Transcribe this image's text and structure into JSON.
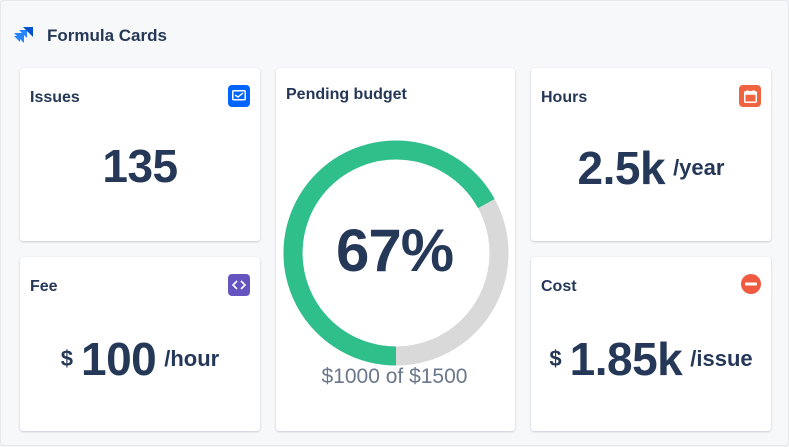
{
  "header": {
    "title": "Formula Cards"
  },
  "cards": {
    "issues": {
      "label": "Issues",
      "value": "135",
      "icon": "monitor-icon",
      "icon_color": "#0065ff"
    },
    "fee": {
      "label": "Fee",
      "prefix": "$",
      "value": "100",
      "unit": "/hour",
      "icon": "code-icon",
      "icon_color": "#6554c0"
    },
    "budget": {
      "label": "Pending budget",
      "percent_label": "67%",
      "percent": 0.67,
      "subtitle": "$1000 of $1500",
      "progress_color": "#2ebf8a",
      "track_color": "#d9d9d9"
    },
    "hours": {
      "label": "Hours",
      "value": "2.5k",
      "unit": "/year",
      "icon": "calendar-icon",
      "icon_color": "#f0643f"
    },
    "cost": {
      "label": "Cost",
      "prefix": "$",
      "value": "1.85k",
      "unit": "/issue",
      "icon": "minus-circle-icon",
      "icon_color": "#ef5a40"
    }
  }
}
